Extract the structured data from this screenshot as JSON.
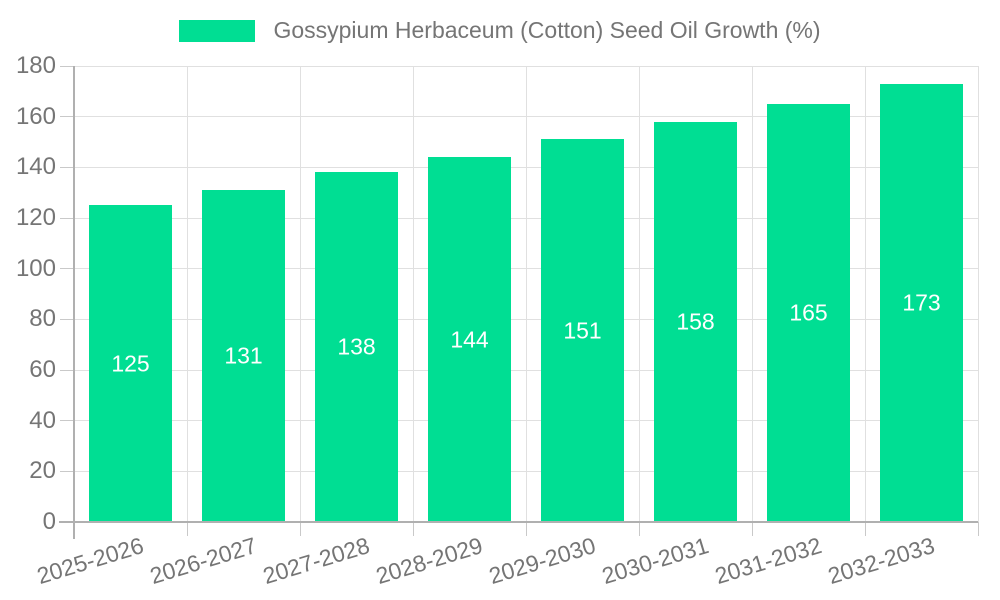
{
  "legend": {
    "label": "Gossypium Herbaceum (Cotton) Seed Oil Growth (%)"
  },
  "chart_data": {
    "type": "bar",
    "title": "",
    "xlabel": "",
    "ylabel": "",
    "categories": [
      "2025-2026",
      "2026-2027",
      "2027-2028",
      "2028-2029",
      "2029-2030",
      "2030-2031",
      "2031-2032",
      "2032-2033"
    ],
    "series": [
      {
        "name": "Gossypium Herbaceum (Cotton) Seed Oil Growth (%)",
        "values": [
          125,
          131,
          138,
          144,
          151,
          158,
          165,
          173
        ]
      }
    ],
    "values": [
      125,
      131,
      138,
      144,
      151,
      158,
      165,
      173
    ],
    "value_labels_shown_inside_bars": true,
    "ylim": [
      0,
      180
    ],
    "yticks": [
      0,
      20,
      40,
      60,
      80,
      100,
      120,
      140,
      160,
      180
    ],
    "grid": true,
    "legend_position": "top",
    "bar_color": "#00DE93"
  },
  "colors": {
    "bar": "#00DE93",
    "axis_text": "#757575",
    "value_label_text": "#ffffff",
    "grid_line": "#e0e0e0",
    "axis_line": "#b0b0b0",
    "tick_line": "#c9c9c9",
    "background": "#ffffff"
  }
}
